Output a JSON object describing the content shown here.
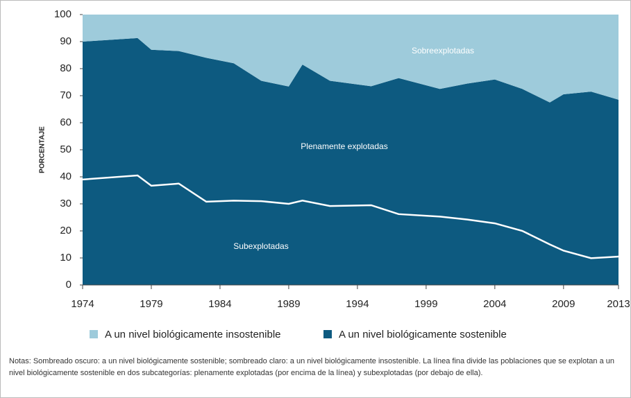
{
  "chart_data": {
    "type": "stacked-area",
    "y_label": "PORCENTAJE",
    "x": [
      1974,
      1978,
      1979,
      1981,
      1983,
      1985,
      1987,
      1989,
      1990,
      1992,
      1995,
      1997,
      2000,
      2002,
      2004,
      2006,
      2008,
      2009,
      2011,
      2013
    ],
    "series": [
      {
        "name": "A un nivel biológicamente sostenible",
        "color": "#0d5a80",
        "values": [
          90,
          91.3,
          87,
          86.5,
          84,
          82,
          75.5,
          73.4,
          81.5,
          75.5,
          73.5,
          76.5,
          72.5,
          74.5,
          76,
          72.5,
          67.5,
          70.5,
          71.5,
          68.5
        ]
      },
      {
        "name": "A un nivel biológicamente insostenible",
        "color": "#9ecbdb",
        "values": [
          10,
          8.7,
          13,
          13.5,
          16,
          18,
          24.5,
          26.6,
          18.5,
          24.5,
          26.5,
          23.5,
          27.5,
          25.5,
          24,
          27.5,
          32.5,
          29.5,
          28.5,
          31.5
        ]
      }
    ],
    "divider_line": {
      "color": "#ffffff",
      "values": [
        39,
        40.5,
        36.7,
        37.5,
        30.8,
        31.2,
        31,
        30,
        31.2,
        29.2,
        29.5,
        26.2,
        25.3,
        24.2,
        22.8,
        20,
        15,
        12.7,
        9.9,
        10.5
      ]
    },
    "annotations": [
      "Sobreexplotadas",
      "Plenamente explotadas",
      "Subexplotadas"
    ],
    "xlim": [
      1974,
      2013
    ],
    "xticks": [
      1974,
      1979,
      1984,
      1989,
      1994,
      1999,
      2004,
      2009,
      2013
    ],
    "ylim": [
      0,
      100
    ],
    "yticks": [
      0,
      10,
      20,
      30,
      40,
      50,
      60,
      70,
      80,
      90,
      100
    ],
    "legend": "bottom"
  },
  "notes": "Notas: Sombreado oscuro: a un nivel biológicamente sostenible; sombreado claro: a un nivel biológicamente insostenible. La línea fina divide las poblaciones que se explotan a un nivel biológicamente sostenible en dos subcategorías: plenamente explotadas (por encima de la línea) y subexplotadas (por debajo de ella)."
}
